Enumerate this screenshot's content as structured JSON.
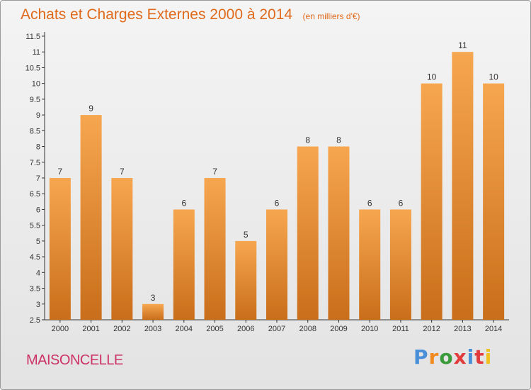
{
  "colors": {
    "title": "#e06a1c",
    "bar_top": "#f7a650",
    "bar_bottom": "#c96e1a",
    "town": "#cc3366",
    "brand": [
      "#4a90d9",
      "#f08a1c",
      "#3a9b3a",
      "#e23b3b",
      "#4a90d9",
      "#e23b3b",
      "#f0c020"
    ]
  },
  "town": "MAISONCELLE",
  "brand_text": "Proxiti",
  "chart_data": {
    "type": "bar",
    "title": "Achats et Charges Externes 2000 à 2014",
    "subtitle": "(en milliers d'€)",
    "xlabel": "",
    "ylabel": "",
    "categories": [
      "2000",
      "2001",
      "2002",
      "2003",
      "2004",
      "2005",
      "2006",
      "2007",
      "2008",
      "2009",
      "2010",
      "2011",
      "2012",
      "2013",
      "2014"
    ],
    "values": [
      7,
      9,
      7,
      3,
      6,
      7,
      5,
      6,
      8,
      8,
      6,
      6,
      10,
      11,
      10
    ],
    "data_labels": [
      "7",
      "9",
      "7",
      "3",
      "6",
      "7",
      "5",
      "6",
      "8",
      "8",
      "6",
      "6",
      "10",
      "11",
      "10"
    ],
    "ylim": [
      2.5,
      11.5
    ],
    "yticks": [
      2.5,
      3,
      3.5,
      4,
      4.5,
      5,
      5.5,
      6,
      6.5,
      7,
      7.5,
      8,
      8.5,
      9,
      9.5,
      10,
      10.5,
      11,
      11.5
    ],
    "ytick_labels": [
      "2.5",
      "3",
      "3.5",
      "4",
      "4.5",
      "5",
      "5.5",
      "6",
      "6.5",
      "7",
      "7.5",
      "8",
      "8.5",
      "9",
      "9.5",
      "10",
      "10.5",
      "11",
      "11.5"
    ],
    "grid": false,
    "legend": "none"
  }
}
